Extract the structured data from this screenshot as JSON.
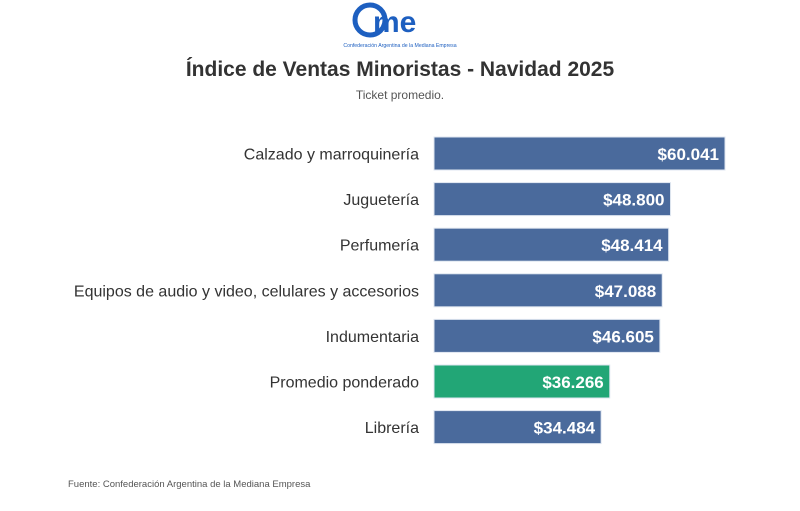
{
  "logo": {
    "text": "cme",
    "tagline": "Confederación Argentina de la Mediana Empresa"
  },
  "colors": {
    "bar": "#4a6a9c",
    "highlight": "#22a676",
    "logo": "#1d5fc0"
  },
  "chart_data": {
    "type": "bar",
    "orientation": "horizontal",
    "title": "Índice de Ventas Minoristas - Navidad 2025",
    "subtitle": "Ticket promedio.",
    "categories": [
      "Calzado y marroquinería",
      "Juguetería",
      "Perfumería",
      "Equipos de audio y video, celulares y accesorios",
      "Indumentaria",
      "Promedio ponderado",
      "Librería"
    ],
    "values": [
      60041,
      48800,
      48414,
      47088,
      46605,
      36266,
      34484
    ],
    "data_labels": [
      "$60.041",
      "$48.800",
      "$48.414",
      "$47.088",
      "$46.605",
      "$36.266",
      "$34.484"
    ],
    "highlight_category": "Promedio ponderado",
    "xlim": [
      0,
      60041
    ],
    "grid": false,
    "axis_visible": false
  },
  "source": "Fuente: Confederación Argentina de la Mediana Empresa"
}
